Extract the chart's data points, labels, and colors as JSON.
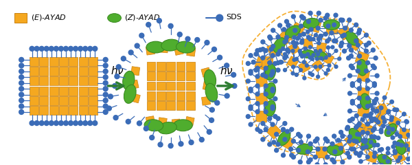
{
  "bg_color": "#ffffff",
  "orange_color": "#F5A820",
  "orange_edge": "#C88010",
  "green_color": "#4FAD2E",
  "green_edge": "#3A8A20",
  "blue_color": "#3B6CB7",
  "arrow_green": "#2E7D32",
  "dashed_color": "#F5A820",
  "fig_w": 6.0,
  "fig_h": 2.4,
  "dpi": 100
}
